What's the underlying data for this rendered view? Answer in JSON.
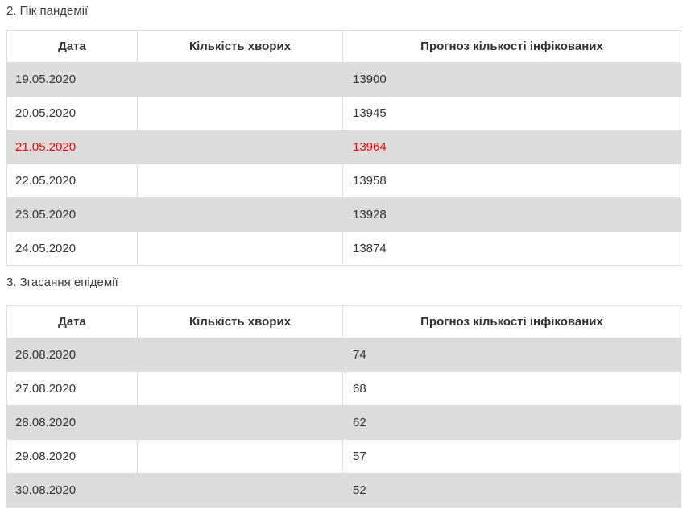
{
  "colors": {
    "page_bg": "#ffffff",
    "text": "#333333",
    "title": "#3d3d3d",
    "stripe_bg": "#dcdcdc",
    "border": "#dddddd",
    "highlight": "#ff0000"
  },
  "sections": [
    {
      "title": "2. Пік пандемії",
      "table": {
        "headers": [
          "Дата",
          "Кількість хворих",
          "Прогноз кількості інфікованих"
        ],
        "rows": [
          {
            "date": "19.05.2020",
            "sick": "",
            "forecast": "13900",
            "highlight": false
          },
          {
            "date": "20.05.2020",
            "sick": "",
            "forecast": "13945",
            "highlight": false
          },
          {
            "date": "21.05.2020",
            "sick": "",
            "forecast": "13964",
            "highlight": true
          },
          {
            "date": "22.05.2020",
            "sick": "",
            "forecast": "13958",
            "highlight": false
          },
          {
            "date": "23.05.2020",
            "sick": "",
            "forecast": "13928",
            "highlight": false
          },
          {
            "date": "24.05.2020",
            "sick": "",
            "forecast": "13874",
            "highlight": false
          }
        ]
      }
    },
    {
      "title": "3. Згасання епідемії",
      "table": {
        "headers": [
          "Дата",
          "Кількість хворих",
          "Прогноз кількості інфікованих"
        ],
        "rows": [
          {
            "date": "26.08.2020",
            "sick": "",
            "forecast": "74",
            "highlight": false
          },
          {
            "date": "27.08.2020",
            "sick": "",
            "forecast": "68",
            "highlight": false
          },
          {
            "date": "28.08.2020",
            "sick": "",
            "forecast": "62",
            "highlight": false
          },
          {
            "date": "29.08.2020",
            "sick": "",
            "forecast": "57",
            "highlight": false
          },
          {
            "date": "30.08.2020",
            "sick": "",
            "forecast": "52",
            "highlight": false
          }
        ]
      }
    }
  ]
}
